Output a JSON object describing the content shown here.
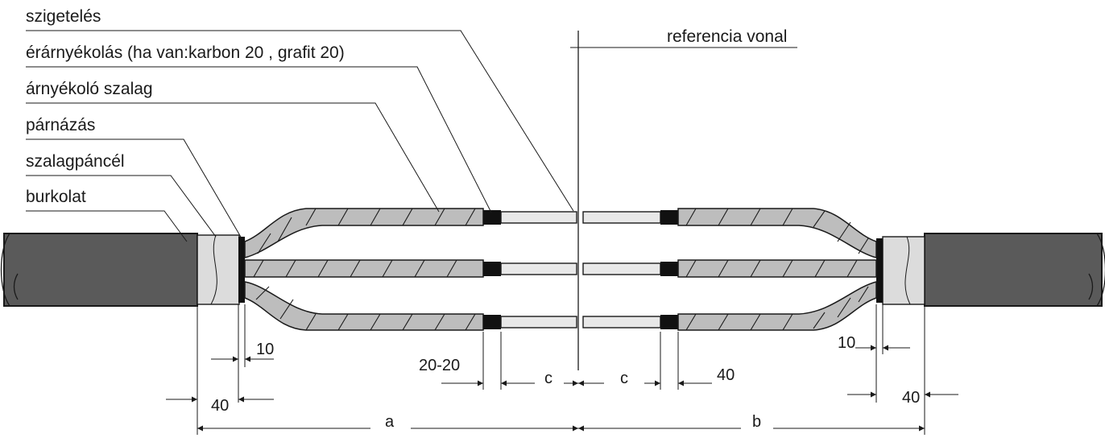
{
  "labels": {
    "insulation": "szigetelés",
    "semicon": "érárnyékolás (ha van:karbon 20 , grafit 20)",
    "screen_tape": "árnyékoló szalag",
    "bedding": "párnázás",
    "armour": "szalagpáncél",
    "sheath": "burkolat",
    "reference": "referencia vonal"
  },
  "dimensions": {
    "d10_left": "10",
    "d40_left": "40",
    "d20_20": "20-20",
    "c_left": "c",
    "c_right": "c",
    "d40_mid": "40",
    "d10_right": "10",
    "d40_right": "40",
    "a": "a",
    "b": "b"
  },
  "colors": {
    "sheath": "#5a5a5a",
    "screen": "#bdbdbd",
    "insulation": "#e8e8e8",
    "semiconductor": "#111111"
  }
}
